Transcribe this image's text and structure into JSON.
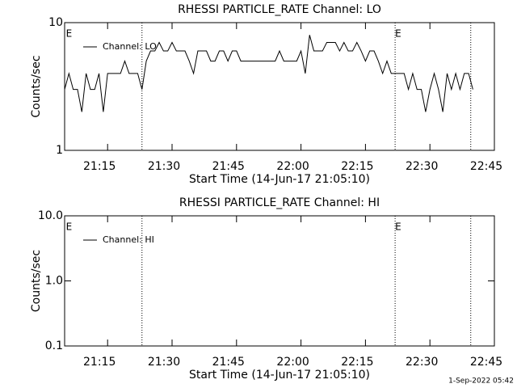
{
  "chart_data": [
    {
      "type": "line",
      "title": "RHESSI PARTICLE_RATE Channel: LO",
      "xlabel": "Start Time (14-Jun-17 21:05:10)",
      "ylabel": "Counts/sec",
      "log_y": true,
      "legend": "upper left",
      "xlim": [
        1265,
        1365
      ],
      "xticks": [
        {
          "value": 1275,
          "label": "21:15"
        },
        {
          "value": 1290,
          "label": "21:30"
        },
        {
          "value": 1305,
          "label": "21:45"
        },
        {
          "value": 1320,
          "label": "22:00"
        },
        {
          "value": 1335,
          "label": "22:15"
        },
        {
          "value": 1350,
          "label": "22:30"
        },
        {
          "value": 1365,
          "label": "22:45"
        }
      ],
      "ylim": [
        1,
        10
      ],
      "yticks": [
        1,
        10
      ],
      "event_lines": [
        1283.0,
        1341.9,
        1359.5
      ],
      "annotations": [
        {
          "x": 1265.3,
          "text": "E"
        },
        {
          "x": 1341.9,
          "text": "E"
        }
      ],
      "x": [
        1265,
        1266,
        1267,
        1268,
        1269,
        1270,
        1271,
        1272,
        1273,
        1274,
        1275,
        1276,
        1277,
        1278,
        1279,
        1280,
        1281,
        1282,
        1283,
        1284,
        1285,
        1286,
        1287,
        1288,
        1289,
        1290,
        1291,
        1292,
        1293,
        1294,
        1295,
        1296,
        1297,
        1298,
        1299,
        1300,
        1301,
        1302,
        1303,
        1304,
        1305,
        1306,
        1307,
        1308,
        1309,
        1310,
        1311,
        1312,
        1313,
        1314,
        1315,
        1316,
        1317,
        1318,
        1319,
        1320,
        1321,
        1322,
        1323,
        1324,
        1325,
        1326,
        1327,
        1328,
        1329,
        1330,
        1331,
        1332,
        1333,
        1334,
        1335,
        1336,
        1337,
        1338,
        1339,
        1340,
        1341,
        1342,
        1343,
        1344,
        1345,
        1346,
        1347,
        1348,
        1349,
        1350,
        1351,
        1352,
        1353,
        1354,
        1355,
        1356,
        1357,
        1358,
        1359,
        1360
      ],
      "series": [
        {
          "name": "Channel: LO",
          "color": "#000000",
          "values": [
            3,
            4,
            3,
            3,
            2,
            4,
            3,
            3,
            4,
            2,
            4,
            4,
            4,
            4,
            5,
            4,
            4,
            4,
            3,
            5,
            6,
            6,
            7,
            6,
            6,
            7,
            6,
            6,
            6,
            5,
            4,
            6,
            6,
            6,
            5,
            5,
            6,
            6,
            5,
            6,
            6,
            5,
            5,
            5,
            5,
            5,
            5,
            5,
            5,
            5,
            6,
            5,
            5,
            5,
            5,
            6,
            4,
            8,
            6,
            6,
            6,
            7,
            7,
            7,
            6,
            7,
            6,
            6,
            7,
            6,
            5,
            6,
            6,
            5,
            4,
            5,
            4,
            4,
            4,
            4,
            3,
            4,
            3,
            3,
            2,
            3,
            4,
            3,
            2,
            4,
            3,
            4,
            3,
            4,
            4,
            3
          ]
        }
      ]
    },
    {
      "type": "line",
      "title": "RHESSI PARTICLE_RATE Channel: HI",
      "xlabel": "Start Time (14-Jun-17 21:05:10)",
      "ylabel": "Counts/sec",
      "log_y": true,
      "legend": "upper left",
      "xlim": [
        1265,
        1365
      ],
      "xticks": [
        {
          "value": 1275,
          "label": "21:15"
        },
        {
          "value": 1290,
          "label": "21:30"
        },
        {
          "value": 1305,
          "label": "21:45"
        },
        {
          "value": 1320,
          "label": "22:00"
        },
        {
          "value": 1335,
          "label": "22:15"
        },
        {
          "value": 1350,
          "label": "22:30"
        },
        {
          "value": 1365,
          "label": "22:45"
        }
      ],
      "ylim": [
        0.1,
        10
      ],
      "yticks": [
        0.1,
        {
          "value": 1,
          "label": "1.0"
        },
        {
          "value": 10,
          "label": "10.0"
        }
      ],
      "event_lines": [
        1283.0,
        1341.9,
        1359.5
      ],
      "annotations": [
        {
          "x": 1265.3,
          "text": "E"
        },
        {
          "x": 1341.9,
          "text": "E"
        }
      ],
      "x": [],
      "series": [
        {
          "name": "Channel: HI",
          "color": "#000000",
          "values": []
        }
      ]
    }
  ],
  "footer": "1-Sep-2022 05:42"
}
